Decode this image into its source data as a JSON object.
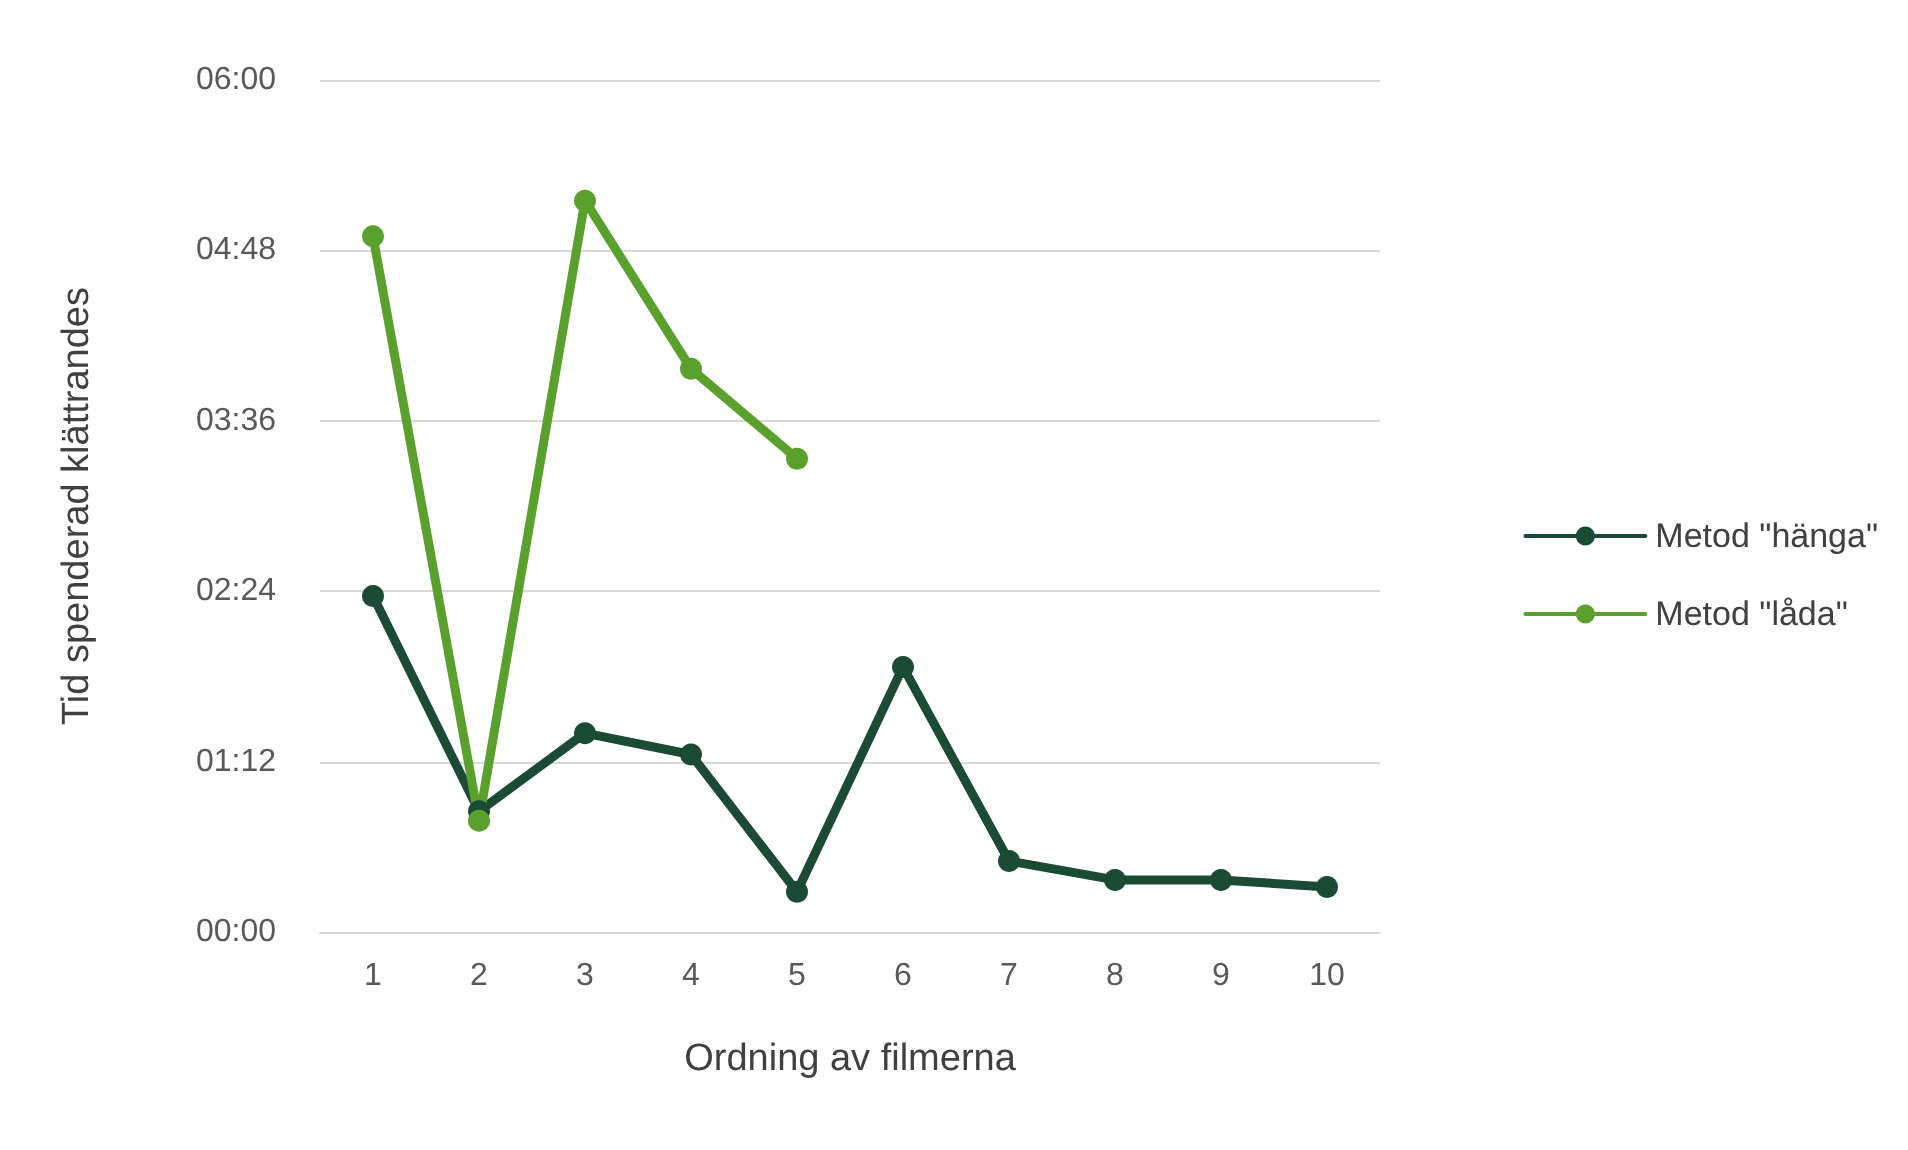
{
  "chart_data": {
    "type": "line",
    "xlabel": "Ordning av filmerna",
    "ylabel": "Tid spenderad klättrandes",
    "categories": [
      "1",
      "2",
      "3",
      "4",
      "5",
      "6",
      "7",
      "8",
      "9",
      "10"
    ],
    "series": [
      {
        "name": "Metod \"hänga\"",
        "color": "#1b4a35",
        "values": [
          142,
          51,
          84,
          75,
          17,
          112,
          30,
          22,
          22,
          19
        ]
      },
      {
        "name": "Metod \"låda\"",
        "color": "#5aa02c",
        "values": [
          294,
          47,
          309,
          238,
          200,
          null,
          null,
          null,
          null,
          null
        ]
      }
    ],
    "ylim": [
      0,
      360
    ],
    "yticks": [
      {
        "value": 0,
        "label": "00:00"
      },
      {
        "value": 72,
        "label": "01:12"
      },
      {
        "value": 144,
        "label": "02:24"
      },
      {
        "value": 216,
        "label": "03:36"
      },
      {
        "value": 288,
        "label": "04:48"
      },
      {
        "value": 360,
        "label": "06:00"
      }
    ],
    "grid": "y",
    "legend": "right",
    "marker": "circle",
    "line_style": "solid"
  }
}
